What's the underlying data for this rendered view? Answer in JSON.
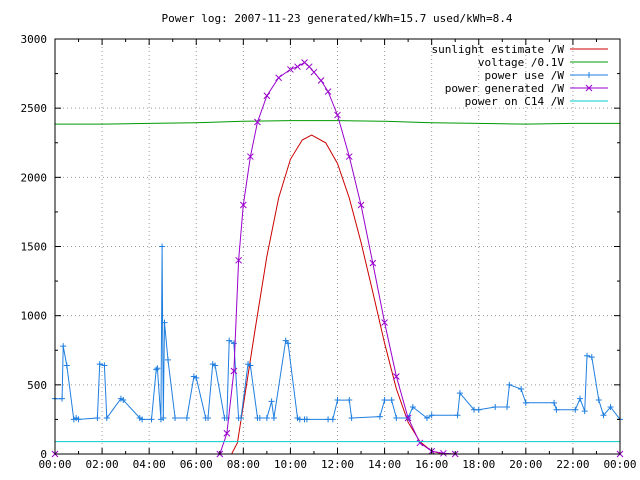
{
  "chart_data": {
    "type": "line",
    "title": "Power log: 2007-11-23 generated/kWh=15.7 used/kWh=8.4",
    "xlabel": "",
    "ylabel": "",
    "xlim": [
      0,
      24
    ],
    "ylim": [
      0,
      3000
    ],
    "grid": true,
    "legend_position": "top-right",
    "x_ticks": [
      "00:00",
      "02:00",
      "04:00",
      "06:00",
      "08:00",
      "10:00",
      "12:00",
      "14:00",
      "16:00",
      "18:00",
      "20:00",
      "22:00",
      "00:00"
    ],
    "y_ticks": [
      "0",
      "500",
      "1000",
      "1500",
      "2000",
      "2500",
      "3000"
    ],
    "series": [
      {
        "name": "sunlight estimate /W",
        "color": "#cc0000",
        "style": "line",
        "x": [
          0,
          7.5,
          7.75,
          8.0,
          8.5,
          9.0,
          9.5,
          10.0,
          10.5,
          10.9,
          11.5,
          12.0,
          12.5,
          13.0,
          13.5,
          14.0,
          14.5,
          15.0,
          15.5,
          16.0,
          16.5,
          24
        ],
        "y": [
          0,
          0,
          80,
          350,
          900,
          1430,
          1850,
          2130,
          2270,
          2305,
          2250,
          2100,
          1850,
          1530,
          1170,
          800,
          470,
          230,
          90,
          20,
          0,
          0
        ]
      },
      {
        "name": "voltage /0.1V",
        "color": "#009900",
        "style": "line",
        "x": [
          0,
          2,
          4,
          6,
          8,
          10,
          12,
          14,
          16,
          18,
          20,
          22,
          24
        ],
        "y": [
          2385,
          2385,
          2390,
          2395,
          2405,
          2410,
          2410,
          2405,
          2395,
          2390,
          2385,
          2390,
          2390
        ]
      },
      {
        "name": "power use /W",
        "color": "#1f7fe0",
        "style": "linepoints",
        "x": [
          0,
          0.3,
          0.35,
          0.5,
          0.8,
          0.9,
          1.0,
          1.8,
          1.9,
          2.1,
          2.2,
          2.8,
          2.9,
          3.6,
          3.7,
          4.1,
          4.3,
          4.35,
          4.5,
          4.55,
          4.6,
          4.65,
          4.8,
          5.1,
          5.6,
          5.9,
          6.0,
          6.4,
          6.5,
          6.7,
          6.8,
          7.2,
          7.3,
          7.4,
          7.6,
          7.8,
          7.9,
          8.2,
          8.3,
          8.6,
          8.7,
          9.0,
          9.2,
          9.3,
          9.8,
          9.9,
          10.3,
          10.4,
          10.6,
          10.7,
          11.6,
          11.8,
          12.0,
          12.5,
          12.6,
          13.8,
          14.0,
          14.3,
          14.5,
          15.0,
          15.2,
          15.8,
          16.0,
          17.1,
          17.2,
          17.8,
          18.0,
          18.7,
          19.2,
          19.3,
          19.8,
          20.0,
          21.2,
          21.3,
          22.1,
          22.3,
          22.5,
          22.6,
          22.8,
          23.1,
          23.3,
          23.6,
          24
        ],
        "y": [
          400,
          400,
          780,
          640,
          250,
          260,
          250,
          260,
          650,
          640,
          260,
          400,
          390,
          260,
          250,
          250,
          610,
          620,
          250,
          1500,
          260,
          950,
          680,
          260,
          260,
          560,
          550,
          260,
          260,
          650,
          640,
          260,
          260,
          820,
          800,
          260,
          260,
          650,
          640,
          260,
          260,
          260,
          380,
          260,
          820,
          800,
          260,
          250,
          250,
          250,
          250,
          250,
          390,
          390,
          260,
          270,
          390,
          390,
          260,
          260,
          340,
          260,
          280,
          280,
          440,
          320,
          320,
          340,
          340,
          500,
          470,
          370,
          370,
          320,
          320,
          400,
          310,
          710,
          700,
          390,
          280,
          340,
          250
        ]
      },
      {
        "name": "power generated /W",
        "color": "#9900cc",
        "style": "linepoints",
        "x": [
          0,
          7.0,
          7.3,
          7.6,
          7.8,
          8.0,
          8.3,
          8.6,
          9.0,
          9.5,
          10.0,
          10.3,
          10.6,
          10.8,
          11.0,
          11.3,
          11.6,
          12.0,
          12.5,
          13.0,
          13.5,
          14.0,
          14.5,
          15.0,
          15.5,
          16.0,
          16.5,
          17.0,
          24
        ],
        "y": [
          0,
          0,
          150,
          600,
          1400,
          1800,
          2150,
          2400,
          2590,
          2720,
          2780,
          2800,
          2830,
          2800,
          2760,
          2700,
          2620,
          2450,
          2150,
          1800,
          1380,
          950,
          560,
          260,
          80,
          20,
          5,
          0,
          0
        ]
      },
      {
        "name": "power on C14 /W",
        "color": "#00cccc",
        "style": "line",
        "x": [
          0,
          24
        ],
        "y": [
          90,
          90
        ]
      }
    ]
  },
  "colors": {
    "background": "#ffffff",
    "grid": "#999999",
    "axis": "#000000"
  }
}
